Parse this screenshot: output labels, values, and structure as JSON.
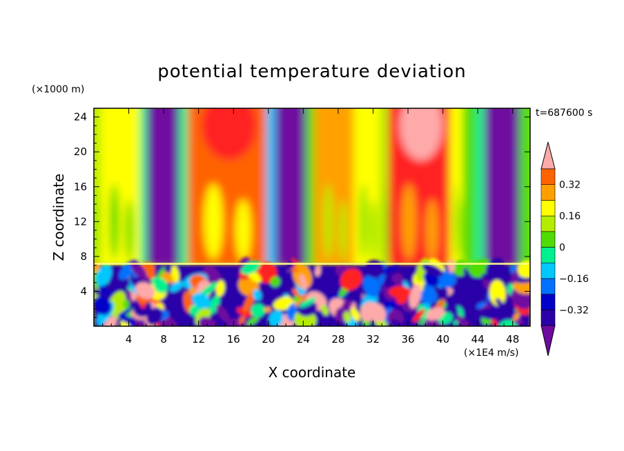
{
  "chart_data": {
    "type": "heatmap",
    "title": "potential temperature deviation",
    "xlabel": "X coordinate",
    "ylabel": "Z coordinate",
    "x_unit": "(×1E4 m/s)",
    "y_unit": "(×1000 m)",
    "time_label": "t=687600 s",
    "xlim": [
      0,
      50
    ],
    "ylim": [
      0,
      25
    ],
    "x_ticks": [
      4,
      8,
      12,
      16,
      20,
      24,
      28,
      32,
      36,
      40,
      44,
      48
    ],
    "y_ticks": [
      4,
      8,
      12,
      16,
      20,
      24
    ],
    "colorbar": {
      "levels": [
        -0.4,
        -0.32,
        -0.24,
        -0.16,
        -0.08,
        0,
        0.08,
        0.16,
        0.24,
        0.32,
        0.4
      ],
      "labels": [
        "0.32",
        "0.16",
        "0",
        "−0.16",
        "−0.32"
      ],
      "label_values": [
        0.32,
        0.16,
        0,
        -0.16,
        -0.32
      ],
      "colors": [
        "#6e0aa0",
        "#2a00a8",
        "#0000c8",
        "#0072ff",
        "#00c8ff",
        "#00f090",
        "#50dc00",
        "#b4ec00",
        "#ffff00",
        "#ffa000",
        "#ff6400",
        "#ff2020",
        "#ffaaaa"
      ]
    },
    "upper_layer_bands": [
      {
        "x0": 0,
        "x1": 1,
        "level": 7
      },
      {
        "x0": 1,
        "x1": 5.5,
        "level": 8
      },
      {
        "x0": 5.5,
        "x1": 6.3,
        "level": 5
      },
      {
        "x0": 6.3,
        "x1": 10.0,
        "level": 0
      },
      {
        "x0": 10.0,
        "x1": 11.0,
        "level": 5
      },
      {
        "x0": 11.0,
        "x1": 20.0,
        "level": 10
      },
      {
        "x0": 20.0,
        "x1": 21.0,
        "level": 4
      },
      {
        "x0": 21.0,
        "x1": 24.5,
        "level": 0
      },
      {
        "x0": 24.5,
        "x1": 25.5,
        "level": 6
      },
      {
        "x0": 25.5,
        "x1": 30.0,
        "level": 9
      },
      {
        "x0": 30.0,
        "x1": 33.0,
        "level": 8
      },
      {
        "x0": 33.0,
        "x1": 34.0,
        "level": 7
      },
      {
        "x0": 34.0,
        "x1": 41.0,
        "level": 11
      },
      {
        "x0": 41.0,
        "x1": 42.5,
        "level": 8
      },
      {
        "x0": 42.5,
        "x1": 44.0,
        "level": 6
      },
      {
        "x0": 44.0,
        "x1": 45.0,
        "level": 5
      },
      {
        "x0": 45.0,
        "x1": 49.0,
        "level": 0
      },
      {
        "x0": 49.0,
        "x1": 50.0,
        "level": 6
      }
    ],
    "inversion_height": 7
  }
}
